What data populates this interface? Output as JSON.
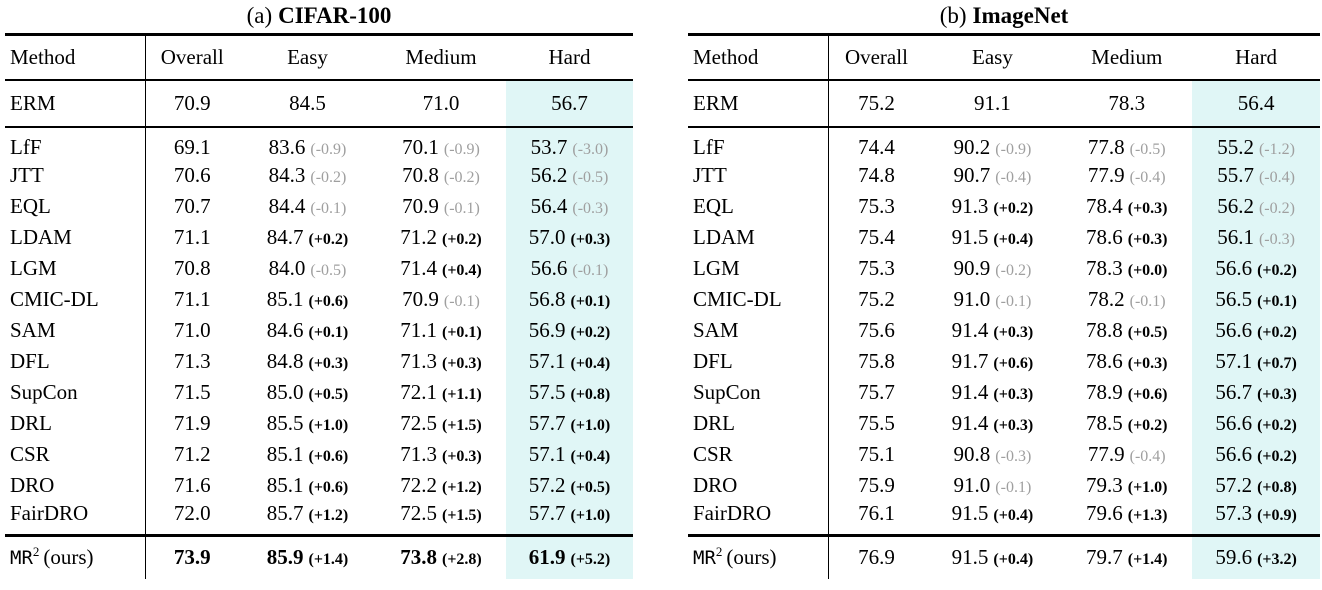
{
  "style": {
    "highlight_color": "#e0f6f6",
    "neg_delta_color": "#9f9f9f",
    "rule_color": "#000000"
  },
  "tables": [
    {
      "caption": {
        "prefix": "(a)",
        "title": "CIFAR-100"
      },
      "columns": [
        "Method",
        "Overall",
        "Easy",
        "Medium",
        "Hard"
      ],
      "baseline_row": {
        "method": "ERM",
        "overall": "70.9",
        "values": [
          "84.5",
          "71.0",
          "56.7"
        ]
      },
      "rows": [
        {
          "method": "LfF",
          "overall": "69.1",
          "cells": [
            {
              "v": "83.6",
              "d": "(-0.9)",
              "s": "neg"
            },
            {
              "v": "70.1",
              "d": "(-0.9)",
              "s": "neg"
            },
            {
              "v": "53.7",
              "d": "(-3.0)",
              "s": "neg"
            }
          ]
        },
        {
          "method": "JTT",
          "overall": "70.6",
          "cells": [
            {
              "v": "84.3",
              "d": "(-0.2)",
              "s": "neg"
            },
            {
              "v": "70.8",
              "d": "(-0.2)",
              "s": "neg"
            },
            {
              "v": "56.2",
              "d": "(-0.5)",
              "s": "neg"
            }
          ]
        },
        {
          "method": "EQL",
          "overall": "70.7",
          "cells": [
            {
              "v": "84.4",
              "d": "(-0.1)",
              "s": "neg"
            },
            {
              "v": "70.9",
              "d": "(-0.1)",
              "s": "neg"
            },
            {
              "v": "56.4",
              "d": "(-0.3)",
              "s": "neg"
            }
          ]
        },
        {
          "method": "LDAM",
          "overall": "71.1",
          "cells": [
            {
              "v": "84.7",
              "d": "(+0.2)",
              "s": "pos"
            },
            {
              "v": "71.2",
              "d": "(+0.2)",
              "s": "pos"
            },
            {
              "v": "57.0",
              "d": "(+0.3)",
              "s": "pos"
            }
          ]
        },
        {
          "method": "LGM",
          "overall": "70.8",
          "cells": [
            {
              "v": "84.0",
              "d": "(-0.5)",
              "s": "neg"
            },
            {
              "v": "71.4",
              "d": "(+0.4)",
              "s": "pos"
            },
            {
              "v": "56.6",
              "d": "(-0.1)",
              "s": "neg"
            }
          ]
        },
        {
          "method": "CMIC-DL",
          "overall": "71.1",
          "cells": [
            {
              "v": "85.1",
              "d": "(+0.6)",
              "s": "pos"
            },
            {
              "v": "70.9",
              "d": "(-0.1)",
              "s": "neg"
            },
            {
              "v": "56.8",
              "d": "(+0.1)",
              "s": "pos"
            }
          ]
        },
        {
          "method": "SAM",
          "overall": "71.0",
          "cells": [
            {
              "v": "84.6",
              "d": "(+0.1)",
              "s": "pos"
            },
            {
              "v": "71.1",
              "d": "(+0.1)",
              "s": "pos"
            },
            {
              "v": "56.9",
              "d": "(+0.2)",
              "s": "pos"
            }
          ]
        },
        {
          "method": "DFL",
          "overall": "71.3",
          "cells": [
            {
              "v": "84.8",
              "d": "(+0.3)",
              "s": "pos"
            },
            {
              "v": "71.3",
              "d": "(+0.3)",
              "s": "pos"
            },
            {
              "v": "57.1",
              "d": "(+0.4)",
              "s": "pos"
            }
          ]
        },
        {
          "method": "SupCon",
          "overall": "71.5",
          "cells": [
            {
              "v": "85.0",
              "d": "(+0.5)",
              "s": "pos"
            },
            {
              "v": "72.1",
              "d": "(+1.1)",
              "s": "pos"
            },
            {
              "v": "57.5",
              "d": "(+0.8)",
              "s": "pos"
            }
          ]
        },
        {
          "method": "DRL",
          "overall": "71.9",
          "cells": [
            {
              "v": "85.5",
              "d": "(+1.0)",
              "s": "pos"
            },
            {
              "v": "72.5",
              "d": "(+1.5)",
              "s": "pos"
            },
            {
              "v": "57.7",
              "d": "(+1.0)",
              "s": "pos"
            }
          ]
        },
        {
          "method": "CSR",
          "overall": "71.2",
          "cells": [
            {
              "v": "85.1",
              "d": "(+0.6)",
              "s": "pos"
            },
            {
              "v": "71.3",
              "d": "(+0.3)",
              "s": "pos"
            },
            {
              "v": "57.1",
              "d": "(+0.4)",
              "s": "pos"
            }
          ]
        },
        {
          "method": "DRO",
          "overall": "71.6",
          "cells": [
            {
              "v": "85.1",
              "d": "(+0.6)",
              "s": "pos"
            },
            {
              "v": "72.2",
              "d": "(+1.2)",
              "s": "pos"
            },
            {
              "v": "57.2",
              "d": "(+0.5)",
              "s": "pos"
            }
          ]
        },
        {
          "method": "FairDRO",
          "overall": "72.0",
          "cells": [
            {
              "v": "85.7",
              "d": "(+1.2)",
              "s": "pos"
            },
            {
              "v": "72.5",
              "d": "(+1.5)",
              "s": "pos"
            },
            {
              "v": "57.7",
              "d": "(+1.0)",
              "s": "pos"
            }
          ]
        }
      ],
      "ours_row": {
        "method": {
          "tt": "MR",
          "sup": "2",
          "rest": "(ours)"
        },
        "bold_values": true,
        "overall": "73.9",
        "cells": [
          {
            "v": "85.9",
            "d": "(+1.4)",
            "s": "pos"
          },
          {
            "v": "73.8",
            "d": "(+2.8)",
            "s": "pos"
          },
          {
            "v": "61.9",
            "d": "(+5.2)",
            "s": "pos"
          }
        ]
      }
    },
    {
      "caption": {
        "prefix": "(b)",
        "title": "ImageNet"
      },
      "columns": [
        "Method",
        "Overall",
        "Easy",
        "Medium",
        "Hard"
      ],
      "baseline_row": {
        "method": "ERM",
        "overall": "75.2",
        "values": [
          "91.1",
          "78.3",
          "56.4"
        ]
      },
      "rows": [
        {
          "method": "LfF",
          "overall": "74.4",
          "cells": [
            {
              "v": "90.2",
              "d": "(-0.9)",
              "s": "neg"
            },
            {
              "v": "77.8",
              "d": "(-0.5)",
              "s": "neg"
            },
            {
              "v": "55.2",
              "d": "(-1.2)",
              "s": "neg"
            }
          ]
        },
        {
          "method": "JTT",
          "overall": "74.8",
          "cells": [
            {
              "v": "90.7",
              "d": "(-0.4)",
              "s": "neg"
            },
            {
              "v": "77.9",
              "d": "(-0.4)",
              "s": "neg"
            },
            {
              "v": "55.7",
              "d": "(-0.4)",
              "s": "neg"
            }
          ]
        },
        {
          "method": "EQL",
          "overall": "75.3",
          "cells": [
            {
              "v": "91.3",
              "d": "(+0.2)",
              "s": "pos"
            },
            {
              "v": "78.4",
              "d": "(+0.3)",
              "s": "pos"
            },
            {
              "v": "56.2",
              "d": "(-0.2)",
              "s": "neg"
            }
          ]
        },
        {
          "method": "LDAM",
          "overall": "75.4",
          "cells": [
            {
              "v": "91.5",
              "d": "(+0.4)",
              "s": "pos"
            },
            {
              "v": "78.6",
              "d": "(+0.3)",
              "s": "pos"
            },
            {
              "v": "56.1",
              "d": "(-0.3)",
              "s": "neg"
            }
          ]
        },
        {
          "method": "LGM",
          "overall": "75.3",
          "cells": [
            {
              "v": "90.9",
              "d": "(-0.2)",
              "s": "neg"
            },
            {
              "v": "78.3",
              "d": "(+0.0)",
              "s": "pos"
            },
            {
              "v": "56.6",
              "d": "(+0.2)",
              "s": "pos"
            }
          ]
        },
        {
          "method": "CMIC-DL",
          "overall": "75.2",
          "cells": [
            {
              "v": "91.0",
              "d": "(-0.1)",
              "s": "neg"
            },
            {
              "v": "78.2",
              "d": "(-0.1)",
              "s": "neg"
            },
            {
              "v": "56.5",
              "d": "(+0.1)",
              "s": "pos"
            }
          ]
        },
        {
          "method": "SAM",
          "overall": "75.6",
          "cells": [
            {
              "v": "91.4",
              "d": "(+0.3)",
              "s": "pos"
            },
            {
              "v": "78.8",
              "d": "(+0.5)",
              "s": "pos"
            },
            {
              "v": "56.6",
              "d": "(+0.2)",
              "s": "pos"
            }
          ]
        },
        {
          "method": "DFL",
          "overall": "75.8",
          "cells": [
            {
              "v": "91.7",
              "d": "(+0.6)",
              "s": "pos"
            },
            {
              "v": "78.6",
              "d": "(+0.3)",
              "s": "pos"
            },
            {
              "v": "57.1",
              "d": "(+0.7)",
              "s": "pos"
            }
          ]
        },
        {
          "method": "SupCon",
          "overall": "75.7",
          "cells": [
            {
              "v": "91.4",
              "d": "(+0.3)",
              "s": "pos"
            },
            {
              "v": "78.9",
              "d": "(+0.6)",
              "s": "pos"
            },
            {
              "v": "56.7",
              "d": "(+0.3)",
              "s": "pos"
            }
          ]
        },
        {
          "method": "DRL",
          "overall": "75.5",
          "cells": [
            {
              "v": "91.4",
              "d": "(+0.3)",
              "s": "pos"
            },
            {
              "v": "78.5",
              "d": "(+0.2)",
              "s": "pos"
            },
            {
              "v": "56.6",
              "d": "(+0.2)",
              "s": "pos"
            }
          ]
        },
        {
          "method": "CSR",
          "overall": "75.1",
          "cells": [
            {
              "v": "90.8",
              "d": "(-0.3)",
              "s": "neg"
            },
            {
              "v": "77.9",
              "d": "(-0.4)",
              "s": "neg"
            },
            {
              "v": "56.6",
              "d": "(+0.2)",
              "s": "pos"
            }
          ]
        },
        {
          "method": "DRO",
          "overall": "75.9",
          "cells": [
            {
              "v": "91.0",
              "d": "(-0.1)",
              "s": "neg"
            },
            {
              "v": "79.3",
              "d": "(+1.0)",
              "s": "pos"
            },
            {
              "v": "57.2",
              "d": "(+0.8)",
              "s": "pos"
            }
          ]
        },
        {
          "method": "FairDRO",
          "overall": "76.1",
          "cells": [
            {
              "v": "91.5",
              "d": "(+0.4)",
              "s": "pos"
            },
            {
              "v": "79.6",
              "d": "(+1.3)",
              "s": "pos"
            },
            {
              "v": "57.3",
              "d": "(+0.9)",
              "s": "pos"
            }
          ]
        }
      ],
      "ours_row": {
        "method": {
          "tt": "MR",
          "sup": "2",
          "rest": "(ours)"
        },
        "bold_values": false,
        "overall": "76.9",
        "cells": [
          {
            "v": "91.5",
            "d": "(+0.4)",
            "s": "pos"
          },
          {
            "v": "79.7",
            "d": "(+1.4)",
            "s": "pos"
          },
          {
            "v": "59.6",
            "d": "(+3.2)",
            "s": "pos"
          }
        ]
      }
    }
  ]
}
